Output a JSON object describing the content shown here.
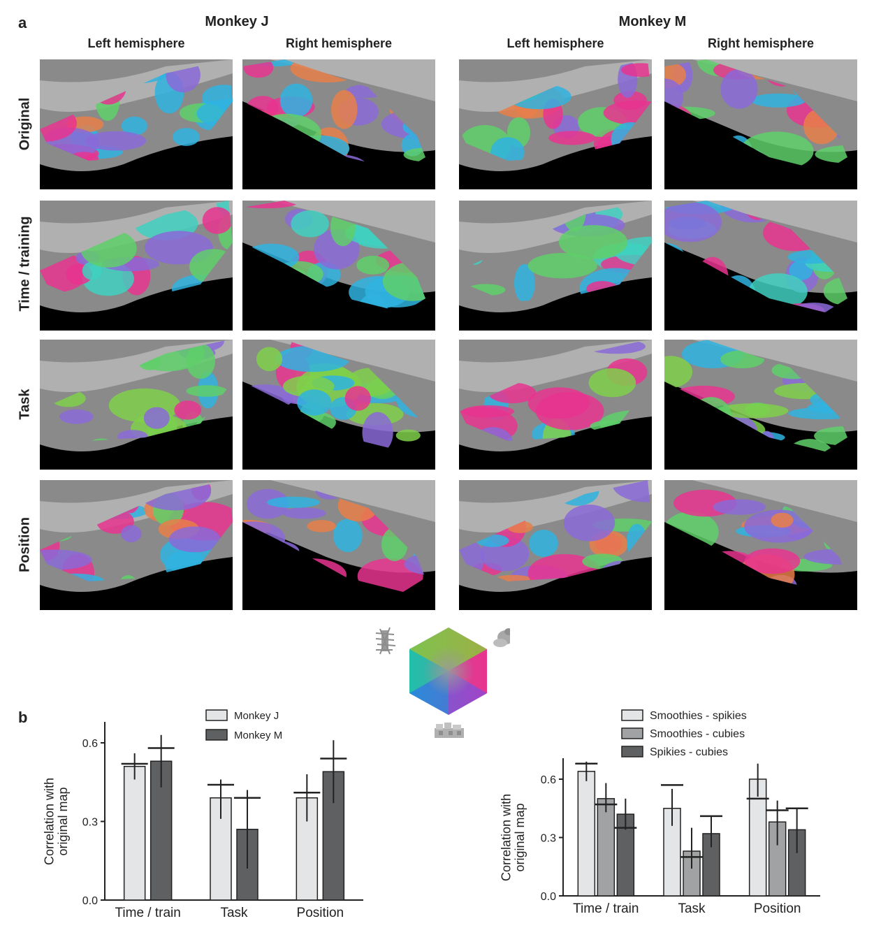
{
  "panel_a": {
    "letter": "a",
    "monkeys": [
      {
        "title": "Monkey J",
        "hemispheres": [
          "Left hemisphere",
          "Right hemisphere"
        ]
      },
      {
        "title": "Monkey M",
        "hemispheres": [
          "Left hemisphere",
          "Right hemisphere"
        ]
      }
    ],
    "rows": [
      "Original",
      "Time / training",
      "Task",
      "Position"
    ],
    "colors": {
      "magenta": "#e8348f",
      "green": "#5fcf6a",
      "cyan": "#2fb3e0",
      "purple": "#8a6ad8",
      "background": "#000000",
      "cortex": "#8a8a8a"
    },
    "legend_icons": [
      "spiky-object-icon",
      "smooth-object-icon",
      "cubie-object-icon"
    ]
  },
  "panel_b": {
    "letter": "b"
  },
  "chart_data": [
    {
      "type": "bar",
      "ylabel": "Correlation with original map",
      "ylim": [
        0,
        0.6
      ],
      "yticks": [
        "0.0",
        "0.3",
        "0.6"
      ],
      "categories": [
        "Time / train",
        "Task",
        "Position"
      ],
      "series": [
        {
          "name": "Monkey J",
          "color": "#e4e5e6",
          "values": [
            0.51,
            0.39,
            0.39
          ],
          "err_low": [
            0.46,
            0.31,
            0.3
          ],
          "err_high": [
            0.56,
            0.46,
            0.48
          ],
          "null": [
            0.52,
            0.44,
            0.41
          ]
        },
        {
          "name": "Monkey M",
          "color": "#5f6062",
          "values": [
            0.53,
            0.27,
            0.49
          ],
          "err_low": [
            0.43,
            0.12,
            0.37
          ],
          "err_high": [
            0.63,
            0.42,
            0.61
          ],
          "null": [
            0.58,
            0.39,
            0.54
          ]
        }
      ],
      "legend": "top-right"
    },
    {
      "type": "bar",
      "ylabel": "Correlation with original map",
      "ylim": [
        0,
        0.6
      ],
      "yticks": [
        "0.0",
        "0.3",
        "0.6"
      ],
      "categories": [
        "Time / train",
        "Task",
        "Position"
      ],
      "series": [
        {
          "name": "Smoothies - spikies",
          "color": "#e4e5e6",
          "values": [
            0.64,
            0.45,
            0.6
          ],
          "err_low": [
            0.59,
            0.36,
            0.51
          ],
          "err_high": [
            0.69,
            0.55,
            0.68
          ],
          "null": [
            0.68,
            0.57,
            0.5
          ]
        },
        {
          "name": "Smoothies - cubies",
          "color": "#a1a2a4",
          "values": [
            0.5,
            0.23,
            0.38
          ],
          "err_low": [
            0.43,
            0.14,
            0.26
          ],
          "err_high": [
            0.58,
            0.35,
            0.49
          ],
          "null": [
            0.47,
            0.2,
            0.44
          ]
        },
        {
          "name": "Spikies - cubies",
          "color": "#5f6062",
          "values": [
            0.42,
            0.32,
            0.34
          ],
          "err_low": [
            0.34,
            0.25,
            0.22
          ],
          "err_high": [
            0.5,
            0.41,
            0.45
          ],
          "null": [
            0.35,
            0.41,
            0.45
          ]
        }
      ],
      "legend": "top"
    }
  ]
}
